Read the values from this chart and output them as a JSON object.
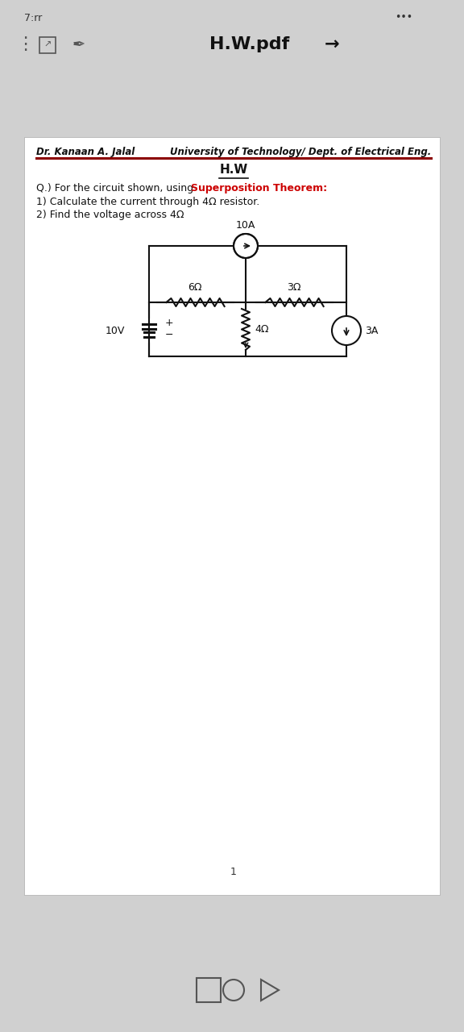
{
  "bg_outer": "#d0d0d0",
  "bg_page": "#ffffff",
  "header_left": "Dr. Kanaan A. Jalal",
  "header_right": "University of Technology/ Dept. of Electrical Eng.",
  "title": "H.W",
  "question_normal": "Q.) For the circuit shown, using ",
  "question_bold_red": "Superposition Theorem:",
  "item1": "1) Calculate the current through 4Ω resistor.",
  "item2": "2) Find the voltage across 4Ω",
  "source_10A": "10A",
  "source_10V": "10V",
  "source_3A": "3A",
  "r6": "6Ω",
  "r3": "3Ω",
  "r4": "4Ω",
  "page_number": "1",
  "status_bar_left": "7:rr",
  "toolbar_title": "H.W.pdf",
  "nav_arrow": "→"
}
